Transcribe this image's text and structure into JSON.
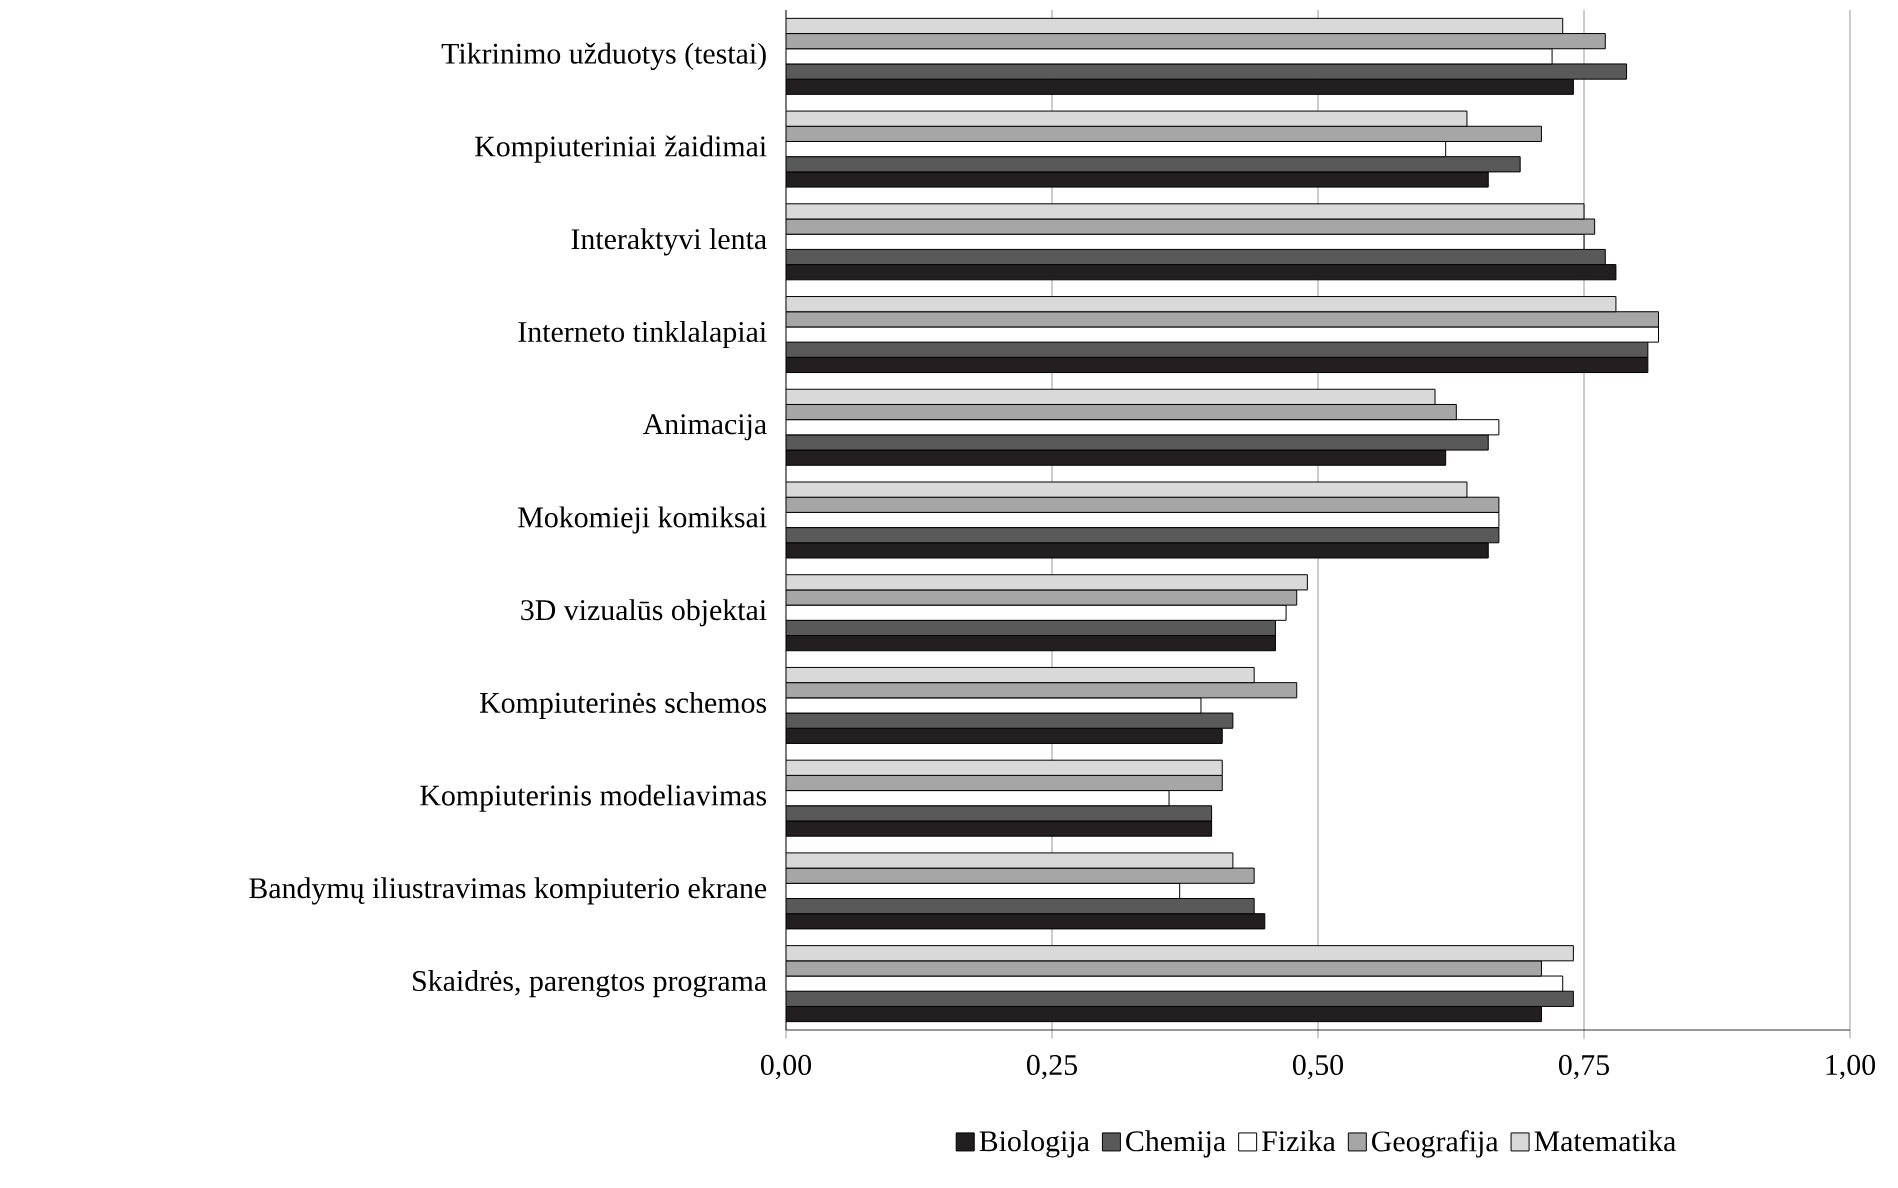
{
  "chart_data": {
    "type": "bar",
    "orientation": "horizontal",
    "categories": [
      "Tikrinimo užduotys (testai)",
      "Kompiuteriniai žaidimai",
      "Interaktyvi lenta",
      "Interneto tinklalapiai",
      "Animacija",
      "Mokomieji komiksai",
      "3D vizualūs objektai",
      "Kompiuterinės schemos",
      "Kompiuterinis modeliavimas",
      "Bandymų iliustravimas kompiuterio ekrane",
      "Skaidrės, parengtos programa"
    ],
    "series": [
      {
        "name": "Biologija",
        "color": "#231f20",
        "values": [
          0.74,
          0.66,
          0.78,
          0.81,
          0.62,
          0.66,
          0.46,
          0.41,
          0.4,
          0.45,
          0.71
        ]
      },
      {
        "name": "Chemija",
        "color": "#595959",
        "values": [
          0.79,
          0.69,
          0.77,
          0.81,
          0.66,
          0.67,
          0.46,
          0.42,
          0.4,
          0.44,
          0.74
        ]
      },
      {
        "name": "Fizika",
        "color": "#ffffff",
        "values": [
          0.72,
          0.62,
          0.75,
          0.82,
          0.67,
          0.67,
          0.47,
          0.39,
          0.36,
          0.37,
          0.73
        ]
      },
      {
        "name": "Geografija",
        "color": "#a6a6a6",
        "values": [
          0.77,
          0.71,
          0.76,
          0.82,
          0.63,
          0.67,
          0.48,
          0.48,
          0.41,
          0.44,
          0.71
        ]
      },
      {
        "name": "Matematika",
        "color": "#d9d9d9",
        "values": [
          0.73,
          0.64,
          0.75,
          0.78,
          0.61,
          0.64,
          0.49,
          0.44,
          0.41,
          0.42,
          0.74
        ]
      }
    ],
    "xlim": [
      0,
      1
    ],
    "xticks": [
      {
        "value": 0,
        "label": "0,00"
      },
      {
        "value": 0.25,
        "label": "0,25"
      },
      {
        "value": 0.5,
        "label": "0,50"
      },
      {
        "value": 0.75,
        "label": "0,75"
      },
      {
        "value": 1,
        "label": "1,00"
      }
    ],
    "grid": "x",
    "legend": "bottom"
  }
}
